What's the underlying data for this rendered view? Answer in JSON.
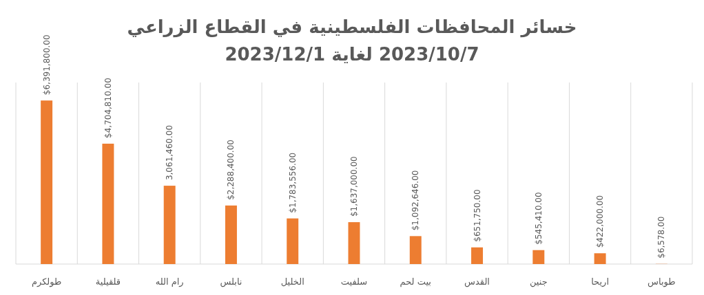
{
  "chart_data": {
    "type": "bar",
    "title": "خسائر المحافظات الفلسطينية في القطاع الزراعي",
    "subtitle": "2023/10/7 لغاية 2023/12/1",
    "categories": [
      "طولكرم",
      "قلقيلية",
      "رام الله",
      "نابلس",
      "الخليل",
      "سلفيت",
      "بيت لحم",
      "القدس",
      "جنين",
      "اريحا",
      "طوباس"
    ],
    "values": [
      6391800,
      4704810,
      3061460,
      2288400,
      1783556,
      1637000,
      1092646,
      651750,
      545410,
      422000,
      6578
    ],
    "value_labels": [
      "$6,391,800.00",
      "$4,704,810.00",
      "3,061,460.00",
      "$2,288,400.00",
      "$1,783,556.00",
      "$1,637,000.00",
      "$1,092,646.00",
      "$651,750.00",
      "$545,410.00",
      "$422,000.00",
      "$6,578.00"
    ],
    "color": "#ed7d31",
    "grid": "x"
  }
}
